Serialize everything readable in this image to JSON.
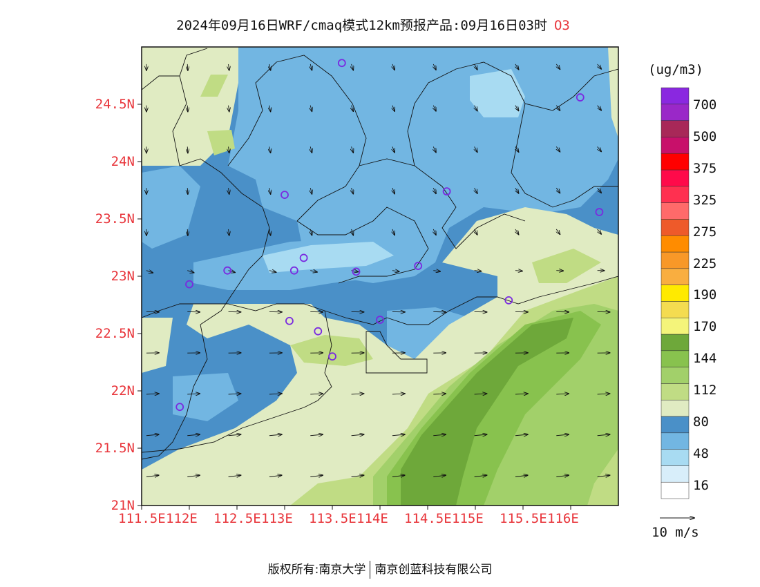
{
  "title": {
    "text": "2024年09月16日WRF/cmaq模式12km预报产品:09月16日03时",
    "species": "O3"
  },
  "map": {
    "lat_labels": [
      "24.5N",
      "24N",
      "23.5N",
      "23N",
      "22.5N",
      "22N",
      "21.5N",
      "21N"
    ],
    "lon_labels": [
      "111.5E",
      "112E",
      "112.5E",
      "113E",
      "113.5E",
      "114E",
      "114.5E",
      "115E",
      "115.5E",
      "116E"
    ]
  },
  "colorbar": {
    "unit": "(ug/m3)",
    "labels": [
      "700",
      "500",
      "375",
      "325",
      "275",
      "225",
      "190",
      "170",
      "144",
      "112",
      "80",
      "48",
      "16"
    ],
    "colors": [
      "#ffffff",
      "#d8eefa",
      "#a8dbf2",
      "#72b6e2",
      "#4a90c8",
      "#e0ebc2",
      "#c0dc84",
      "#a2d06a",
      "#88c24e",
      "#6ea83a",
      "#f4f47a",
      "#f4dc50",
      "#ffea00",
      "#f9ae40",
      "#f89828",
      "#ff8c00",
      "#ee5a2a",
      "#ff6a6a",
      "#ff3050",
      "#ff0a4a",
      "#ff0000",
      "#c8106a",
      "#a82858",
      "#9a28c8",
      "#8a28e0"
    ]
  },
  "wind_scale_label": "10 m/s",
  "stations": [
    {
      "lon": 113.6,
      "lat": 24.86
    },
    {
      "lon": 116.1,
      "lat": 24.56
    },
    {
      "lon": 113.0,
      "lat": 23.71
    },
    {
      "lon": 114.7,
      "lat": 23.74
    },
    {
      "lon": 116.3,
      "lat": 23.56
    },
    {
      "lon": 113.2,
      "lat": 23.16
    },
    {
      "lon": 112.4,
      "lat": 23.05
    },
    {
      "lon": 113.1,
      "lat": 23.05
    },
    {
      "lon": 113.75,
      "lat": 23.04
    },
    {
      "lon": 114.4,
      "lat": 23.09
    },
    {
      "lon": 112.0,
      "lat": 22.93
    },
    {
      "lon": 115.35,
      "lat": 22.79
    },
    {
      "lon": 113.05,
      "lat": 22.61
    },
    {
      "lon": 113.35,
      "lat": 22.52
    },
    {
      "lon": 114.0,
      "lat": 22.62
    },
    {
      "lon": 113.5,
      "lat": 22.3
    },
    {
      "lon": 111.9,
      "lat": 21.86
    }
  ],
  "footer": {
    "left": "版权所有:南京大学",
    "right": "南京创蓝科技有限公司"
  }
}
